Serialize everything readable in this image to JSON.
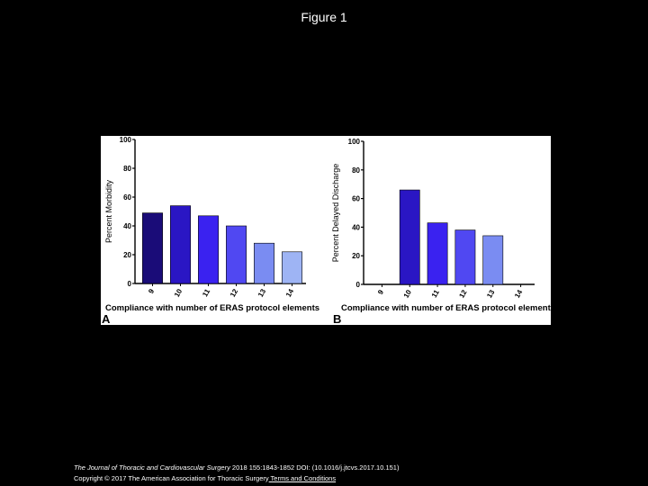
{
  "slide": {
    "title": "Figure 1"
  },
  "footer": {
    "journal": "The Journal of Thoracic and Cardiovascular Surgery",
    "citation": " 2018 155:1843-1852 DOI: (10.1016/j.jtcvs.2017.10.151)",
    "copyright": "Copyright © 2017 The American Association for Thoracic Surgery",
    "link_label": " Terms and Conditions"
  },
  "chart_data": [
    {
      "type": "bar",
      "panel_label": "A",
      "categories": [
        "9",
        "10",
        "11",
        "12",
        "13",
        "14"
      ],
      "values": [
        49,
        54,
        47,
        40,
        28,
        22
      ],
      "colors": [
        "#1a0c78",
        "#2a16c4",
        "#3a22f0",
        "#5048f2",
        "#7a8cf2",
        "#9eb4f4"
      ],
      "xlabel": "Compliance with number of ERAS protocol elements",
      "ylabel": "Percent Morbidity",
      "ylim": [
        0,
        100
      ],
      "yticks": [
        "0",
        "20",
        "40",
        "60",
        "80",
        "100"
      ],
      "grid": false
    },
    {
      "type": "bar",
      "panel_label": "B",
      "categories": [
        "9",
        "10",
        "11",
        "12",
        "13",
        "14"
      ],
      "values": [
        0,
        66,
        43,
        38,
        34,
        0
      ],
      "colors": [
        "#1a0c78",
        "#2a16c4",
        "#3a22f0",
        "#5048f2",
        "#7a8cf2",
        "#9eb4f4"
      ],
      "xlabel": "Compliance with number of ERAS protocol elements",
      "ylabel": "Percent Delayed Discharge",
      "ylim": [
        0,
        100
      ],
      "yticks": [
        "0",
        "20",
        "40",
        "60",
        "80",
        "100"
      ],
      "grid": false
    }
  ]
}
